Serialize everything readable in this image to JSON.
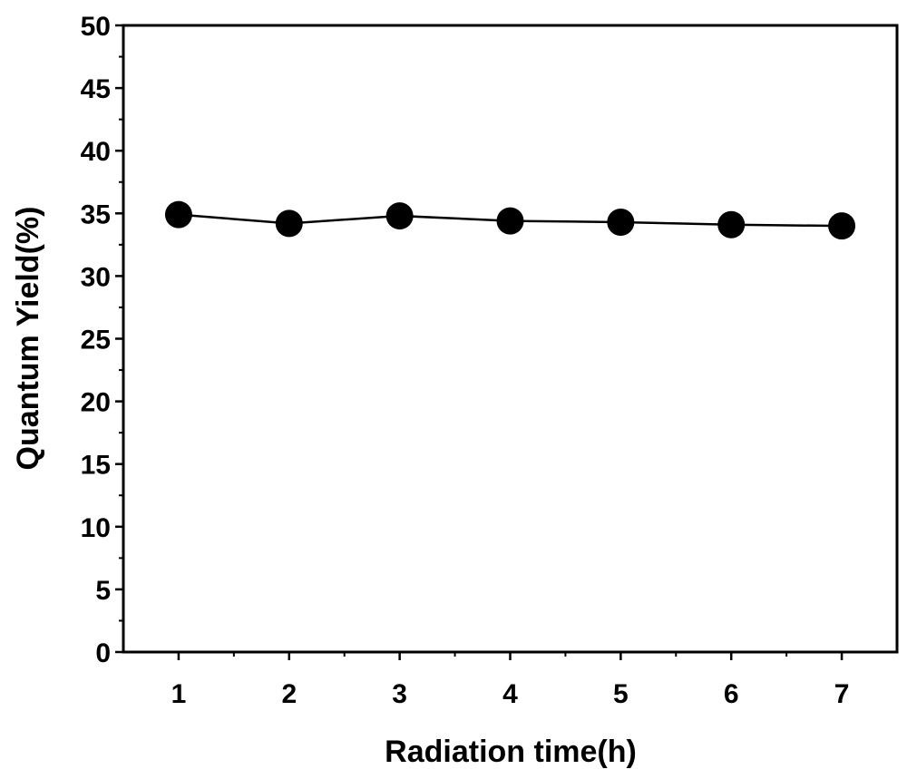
{
  "chart_data": {
    "type": "line",
    "xlabel": "Radiation time(h)",
    "ylabel": "Quantum Yield(%)",
    "x": [
      1,
      2,
      3,
      4,
      5,
      6,
      7
    ],
    "x_ticks": [
      "1",
      "2",
      "3",
      "4",
      "5",
      "6",
      "7"
    ],
    "xlim": [
      0.5,
      7.5
    ],
    "y_ticks": [
      "0",
      "5",
      "10",
      "15",
      "20",
      "25",
      "30",
      "35",
      "40",
      "45",
      "50"
    ],
    "ylim": [
      0,
      50
    ],
    "series": [
      {
        "values": [
          34.9,
          34.2,
          34.8,
          34.4,
          34.3,
          34.1,
          34.0
        ]
      }
    ],
    "marker": "filled-circle",
    "line_color": "#000000",
    "marker_color": "#000000",
    "grid": false,
    "legend": "none"
  }
}
